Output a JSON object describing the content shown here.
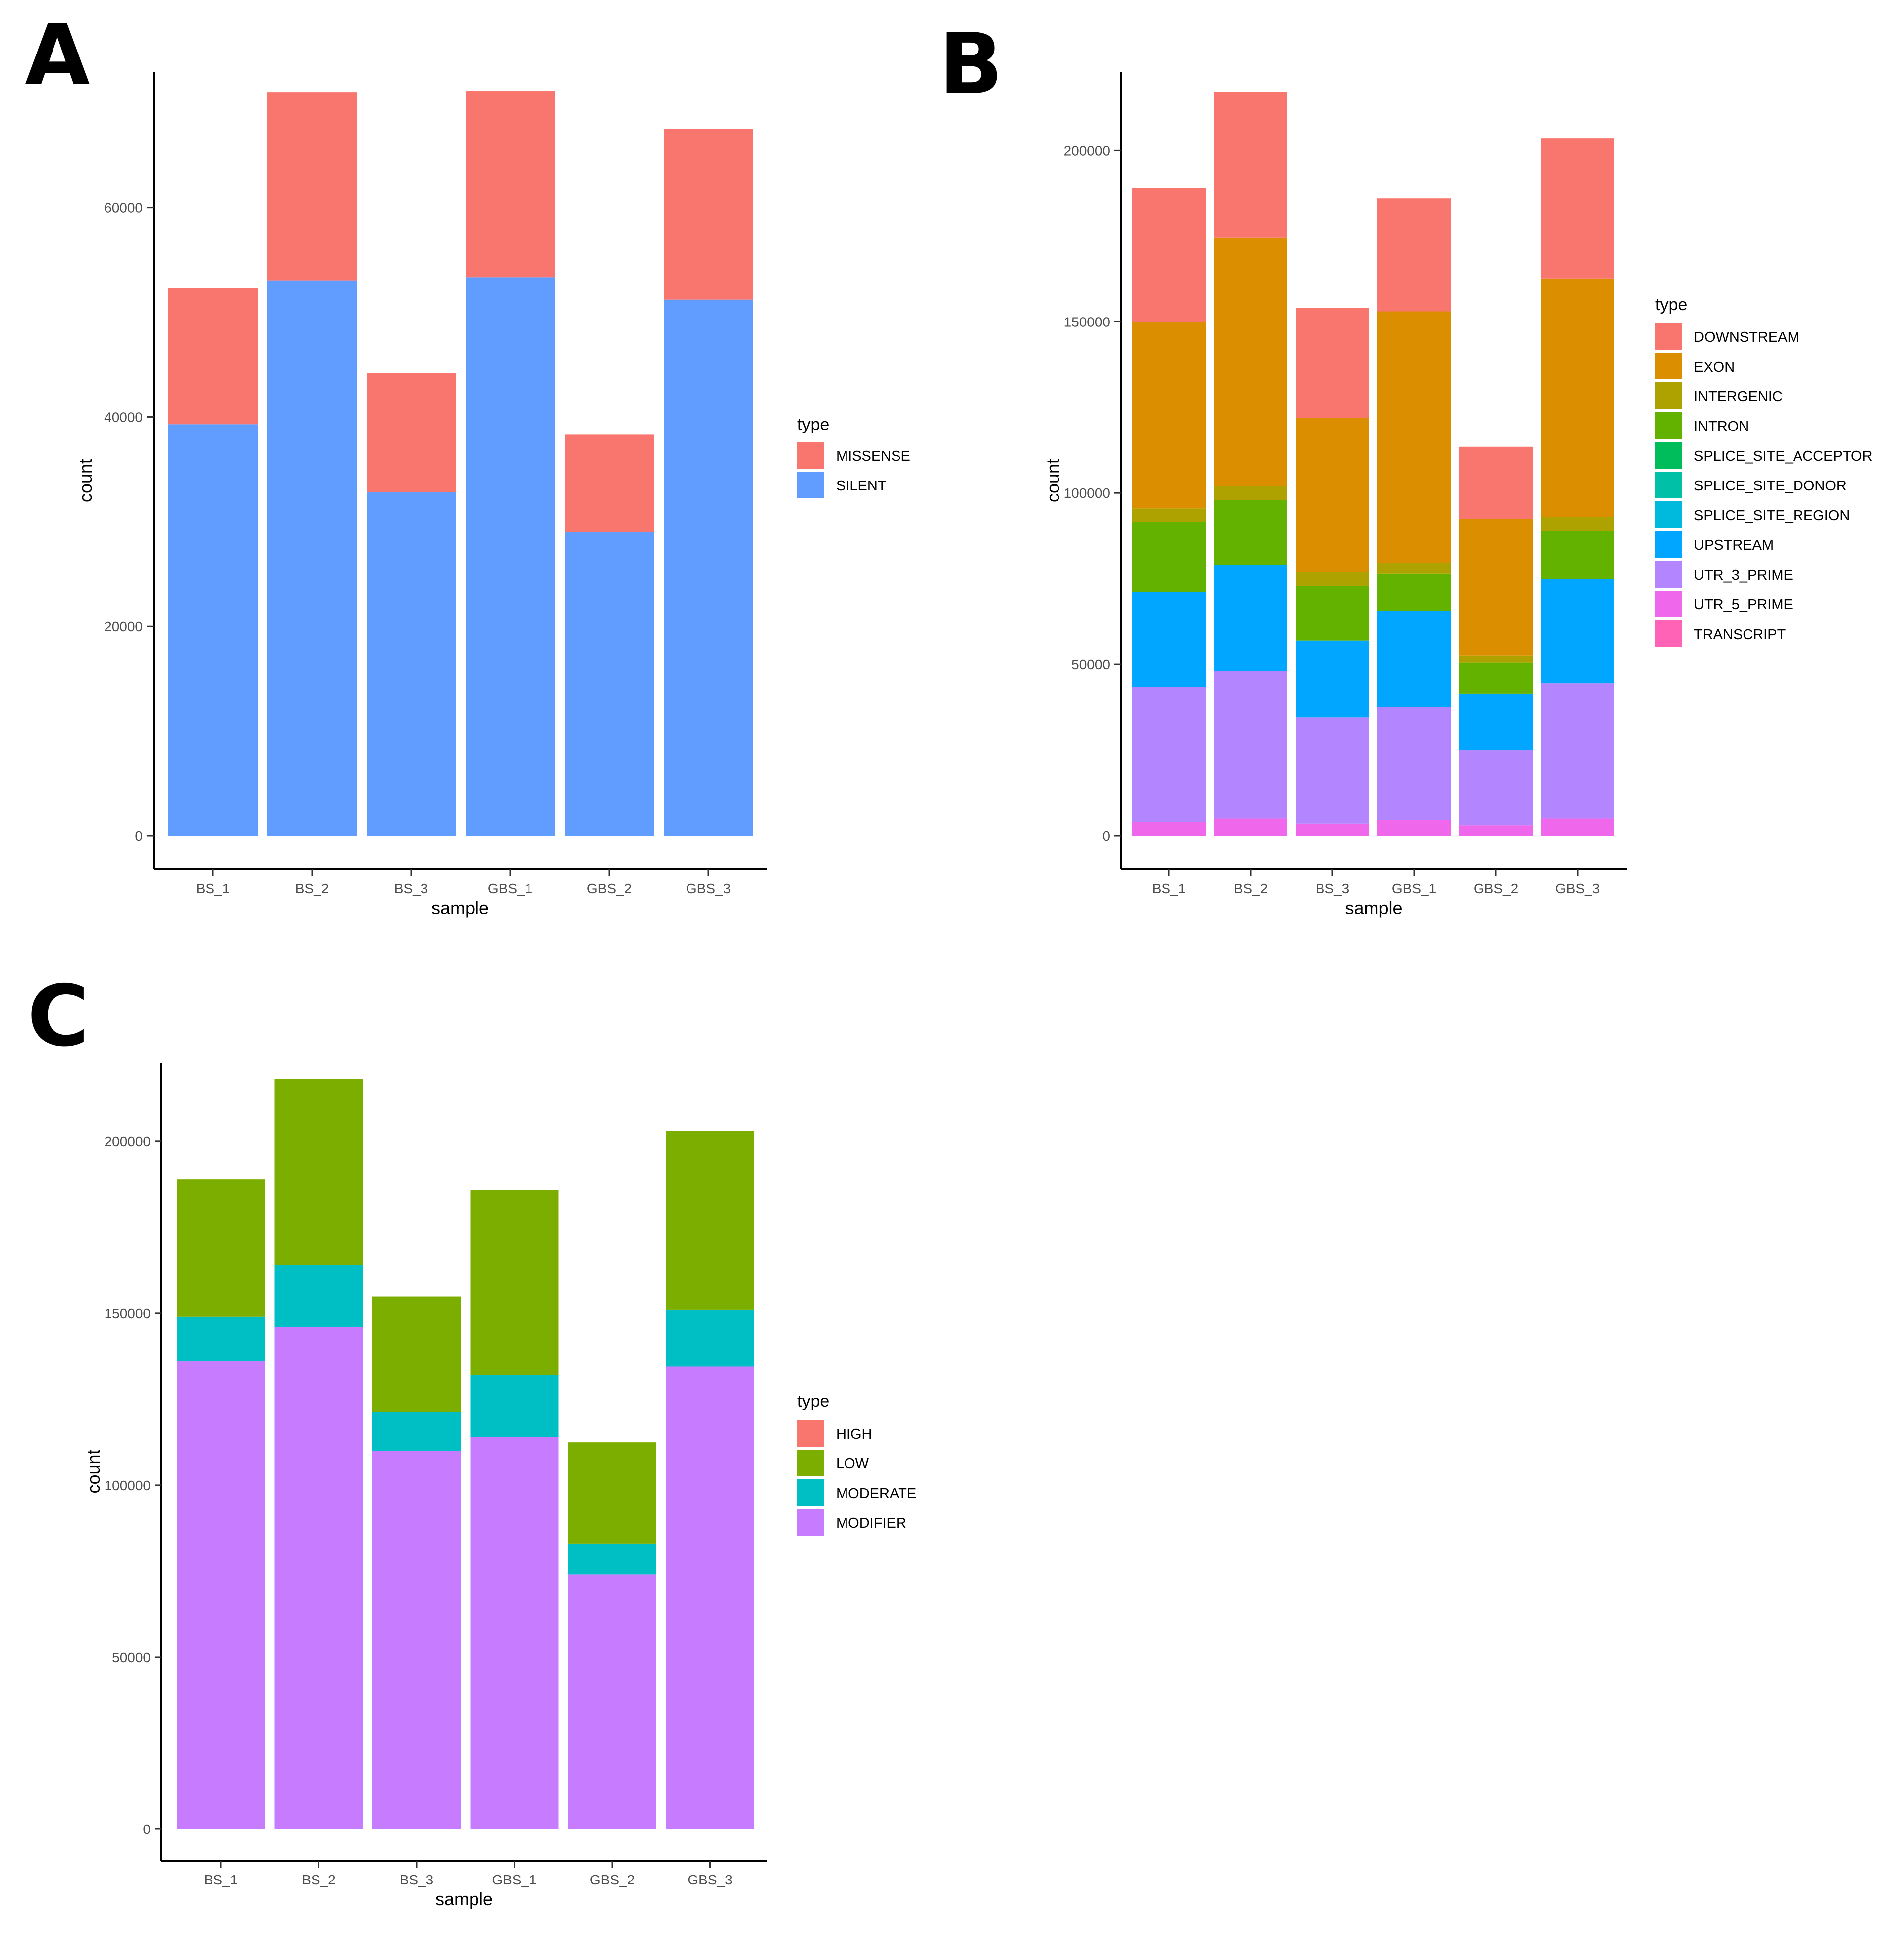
{
  "chart_data": [
    {
      "panel": "A",
      "type": "bar",
      "stacked": true,
      "xlabel": "sample",
      "ylabel": "count",
      "categories": [
        "BS_1",
        "BS_2",
        "BS_3",
        "GBS_1",
        "GBS_2",
        "GBS_3"
      ],
      "ylim": [
        0,
        72000
      ],
      "yticks": [
        0,
        20000,
        40000,
        60000
      ],
      "grid": false,
      "legend": {
        "title": "type",
        "position": "right"
      },
      "series": [
        {
          "name": "MISSENSE",
          "color": "#F8766D",
          "values": [
            13000,
            18000,
            11400,
            17800,
            9300,
            16300
          ]
        },
        {
          "name": "SILENT",
          "color": "#619CFF",
          "values": [
            39300,
            53000,
            32800,
            53300,
            29000,
            51200
          ]
        }
      ]
    },
    {
      "panel": "B",
      "type": "bar",
      "stacked": true,
      "xlabel": "sample",
      "ylabel": "count",
      "categories": [
        "BS_1",
        "BS_2",
        "BS_3",
        "GBS_1",
        "GBS_2",
        "GBS_3"
      ],
      "ylim": [
        0,
        220000
      ],
      "yticks": [
        0,
        50000,
        100000,
        150000,
        200000
      ],
      "grid": false,
      "legend": {
        "title": "type",
        "position": "right"
      },
      "series": [
        {
          "name": "DOWNSTREAM",
          "color": "#F8766D",
          "values": [
            39000,
            42500,
            32000,
            33000,
            21000,
            41000
          ]
        },
        {
          "name": "EXON",
          "color": "#DB8E00",
          "values": [
            54500,
            72500,
            45000,
            73500,
            40000,
            69500
          ]
        },
        {
          "name": "INTERGENIC",
          "color": "#AEA200",
          "values": [
            4000,
            4000,
            4000,
            3000,
            2000,
            4000
          ]
        },
        {
          "name": "INTRON",
          "color": "#64B200",
          "values": [
            20500,
            19000,
            16000,
            11000,
            9000,
            14000
          ]
        },
        {
          "name": "SPLICE_SITE_ACCEPTOR",
          "color": "#00BD5C",
          "values": [
            0,
            0,
            0,
            0,
            0,
            0
          ]
        },
        {
          "name": "SPLICE_SITE_DONOR",
          "color": "#00C1A7",
          "values": [
            0,
            0,
            0,
            0,
            0,
            0
          ]
        },
        {
          "name": "SPLICE_SITE_REGION",
          "color": "#00BADE",
          "values": [
            0,
            0,
            0,
            0,
            0,
            0
          ]
        },
        {
          "name": "UPSTREAM",
          "color": "#00A6FF",
          "values": [
            27500,
            31000,
            22500,
            28000,
            16500,
            30500
          ]
        },
        {
          "name": "UTR_3_PRIME",
          "color": "#B385FF",
          "values": [
            39500,
            43000,
            31000,
            33000,
            22000,
            39500
          ]
        },
        {
          "name": "UTR_5_PRIME",
          "color": "#EF67EB",
          "values": [
            4000,
            5000,
            3500,
            4500,
            3000,
            5000
          ]
        },
        {
          "name": "TRANSCRIPT",
          "color": "#FF63B6",
          "values": [
            0,
            0,
            0,
            0,
            0,
            0
          ]
        }
      ]
    },
    {
      "panel": "C",
      "type": "bar",
      "stacked": true,
      "xlabel": "sample",
      "ylabel": "count",
      "categories": [
        "BS_1",
        "BS_2",
        "BS_3",
        "GBS_1",
        "GBS_2",
        "GBS_3"
      ],
      "ylim": [
        0,
        220000
      ],
      "yticks": [
        0,
        50000,
        100000,
        150000,
        200000
      ],
      "grid": false,
      "legend": {
        "title": "type",
        "position": "right"
      },
      "series": [
        {
          "name": "HIGH",
          "color": "#F8766D",
          "values": [
            0,
            0,
            0,
            0,
            0,
            0
          ]
        },
        {
          "name": "LOW",
          "color": "#7CAE00",
          "values": [
            40000,
            54000,
            33500,
            53800,
            29500,
            52000
          ]
        },
        {
          "name": "MODERATE",
          "color": "#00BFC4",
          "values": [
            13000,
            18000,
            11300,
            18000,
            9000,
            16500
          ]
        },
        {
          "name": "MODIFIER",
          "color": "#C77CFF",
          "values": [
            136000,
            146000,
            110000,
            114000,
            74000,
            134500
          ]
        }
      ]
    }
  ]
}
